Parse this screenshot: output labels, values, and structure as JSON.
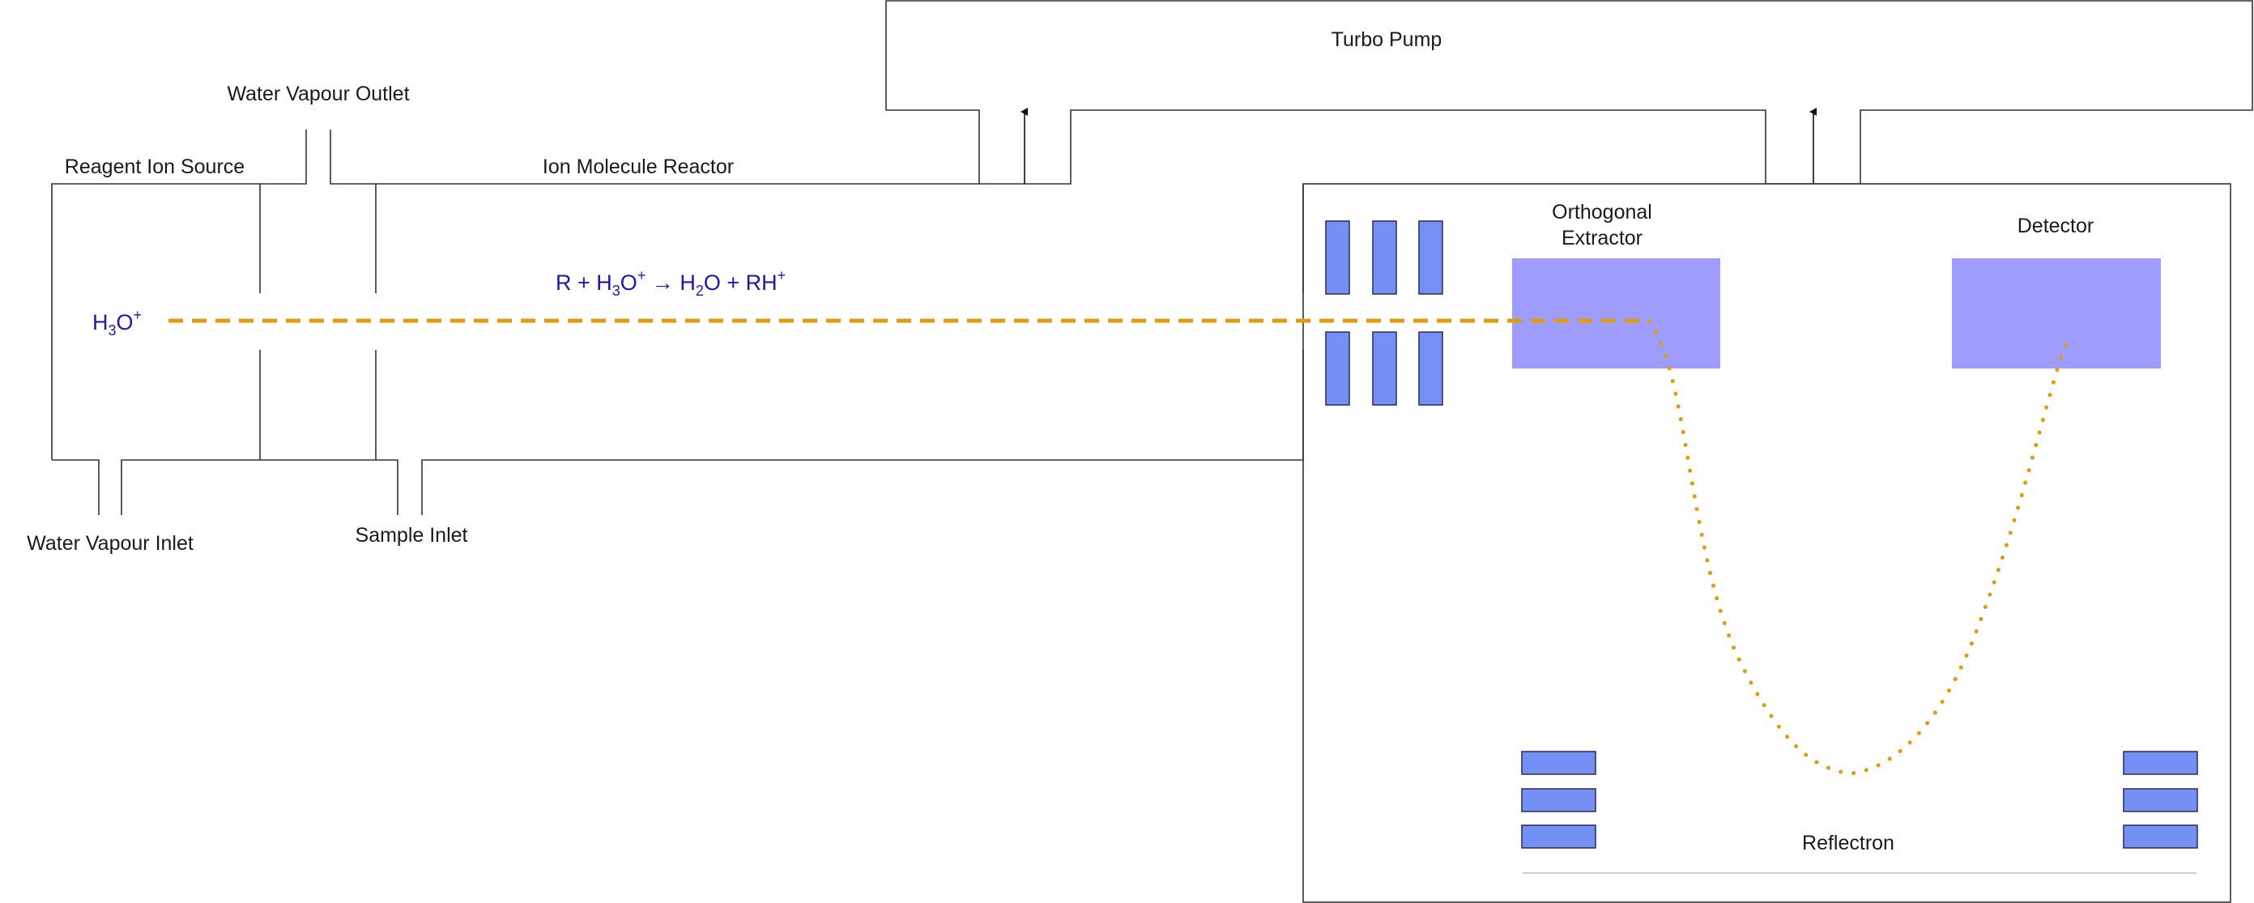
{
  "labels": {
    "turbo_pump": "Turbo Pump",
    "water_vapour_outlet": "Water Vapour Outlet",
    "reagent_ion_source": "Reagent Ion Source",
    "ion_molecule_reactor": "Ion Molecule Reactor",
    "orthogonal_extractor_line1": "Orthogonal",
    "orthogonal_extractor_line2": "Extractor",
    "detector": "Detector",
    "water_vapour_inlet": "Water Vapour Inlet",
    "sample_inlet": "Sample Inlet",
    "reflectron": "Reflectron"
  },
  "ion": {
    "base": "H",
    "sub": "3",
    "tail": "O",
    "sup": "+"
  },
  "reaction": {
    "p1": "R + H",
    "s1": "3",
    "p2": "O",
    "sup1": "+",
    "arrow": " → H",
    "s2": "2",
    "p3": "O + RH",
    "sup2": "+"
  },
  "colors": {
    "ion_path": "#e09b10",
    "plates": "#7590f5",
    "tof_boxes": "#9e9cfc",
    "chem_text": "#1a1aa6"
  }
}
